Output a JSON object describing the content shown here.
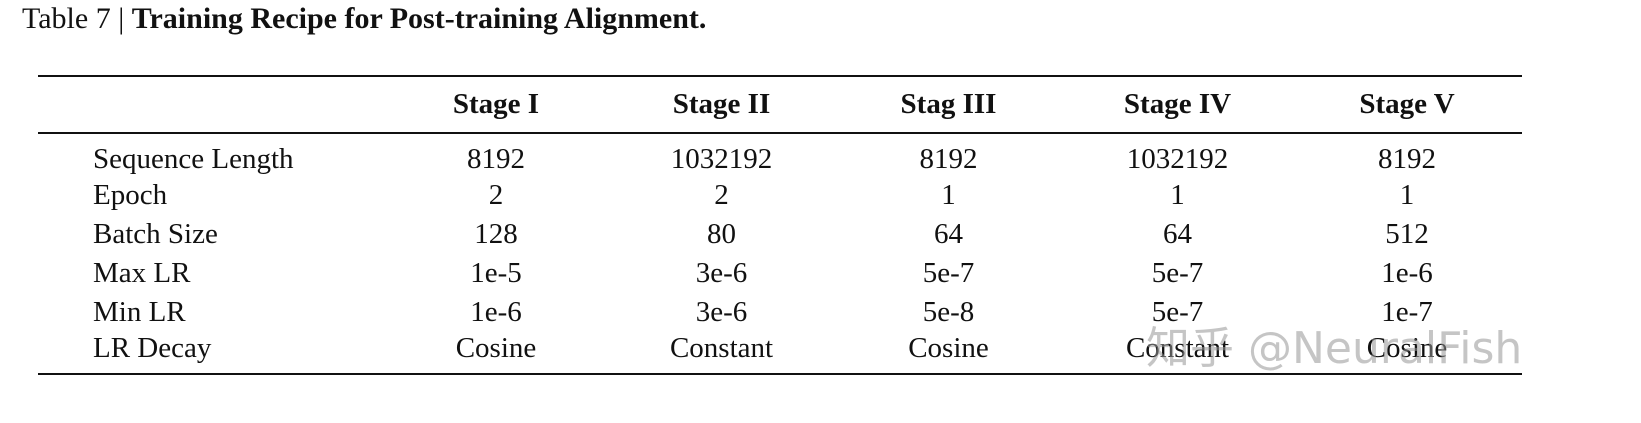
{
  "caption": {
    "label": "Table 7 |",
    "title": "Training Recipe for Post-training Alignment."
  },
  "table": {
    "header": [
      "",
      "Stage I",
      "Stage II",
      "Stag III",
      "Stage IV",
      "Stage V"
    ],
    "rows": [
      [
        "Sequence Length",
        "8192",
        "1032192",
        "8192",
        "1032192",
        "8192"
      ],
      [
        "Epoch",
        "2",
        "2",
        "1",
        "1",
        "1"
      ],
      [
        "Batch Size",
        "128",
        "80",
        "64",
        "64",
        "512"
      ],
      [
        "Max LR",
        "1e-5",
        "3e-6",
        "5e-7",
        "5e-7",
        "1e-6"
      ],
      [
        "Min LR",
        "1e-6",
        "3e-6",
        "5e-8",
        "5e-7",
        "1e-7"
      ],
      [
        "LR Decay",
        "Cosine",
        "Constant",
        "Cosine",
        "Constant",
        "Cosine"
      ]
    ]
  },
  "watermark": "知乎 @NeuralFish"
}
